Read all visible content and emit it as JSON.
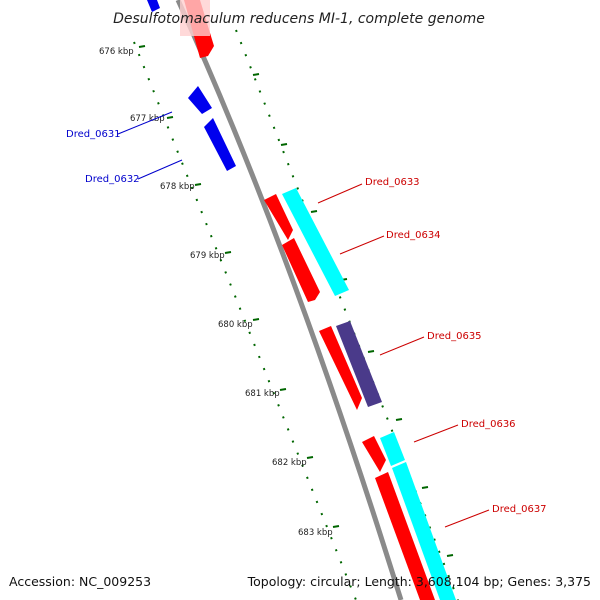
{
  "title": "Desulfotomaculum reducens MI-1, complete genome",
  "footer": {
    "accession": "Accession: NC_009253",
    "summary": "Topology: circular; Length: 3,608,104 bp; Genes: 3,375"
  },
  "scale_labels": [
    "676 kbp",
    "677 kbp",
    "678 kbp",
    "679 kbp",
    "680 kbp",
    "681 kbp",
    "682 kbp",
    "683 kbp"
  ],
  "gene_labels": {
    "dred_0631": "Dred_0631",
    "dred_0632": "Dred_0632",
    "dred_0633": "Dred_0633",
    "dred_0634": "Dred_0634",
    "dred_0635": "Dred_0635",
    "dred_0636": "Dred_0636",
    "dred_0637": "Dred_0637"
  },
  "colors": {
    "backbone": "#8a8a8a",
    "forward_cds": "#ff0000",
    "reverse_cds": "#0000ee",
    "cyan_feature": "#00ffff",
    "purple_feature": "#4a3a8a",
    "tick_dots": "#006600",
    "label_forward": "#cc0000",
    "label_reverse": "#0000cc"
  }
}
